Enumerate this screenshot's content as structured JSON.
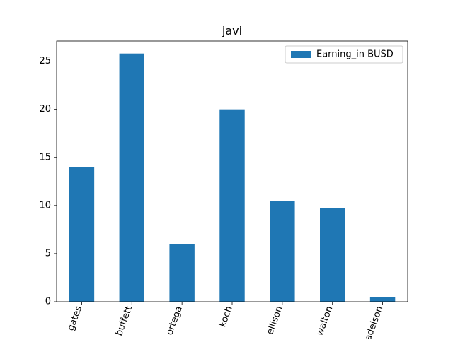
{
  "chart_data": {
    "type": "bar",
    "title": "javi",
    "xlabel": "",
    "ylabel": "",
    "categories": [
      "gates",
      "buffett",
      "ortega",
      "koch",
      "ellison",
      "walton",
      "adelson"
    ],
    "series": [
      {
        "name": "Earning_in BUSD",
        "values": [
          14.0,
          25.8,
          6.0,
          20.0,
          10.5,
          9.7,
          0.5
        ],
        "color": "#1f77b4"
      }
    ],
    "ylim": [
      0,
      27.1
    ],
    "yticks": [
      0,
      5,
      10,
      15,
      20,
      25
    ],
    "ytick_labels": [
      "0",
      "5",
      "10",
      "15",
      "20",
      "25"
    ],
    "x_tick_rotation_deg": -70,
    "grid": false,
    "legend_position": "top-right"
  }
}
